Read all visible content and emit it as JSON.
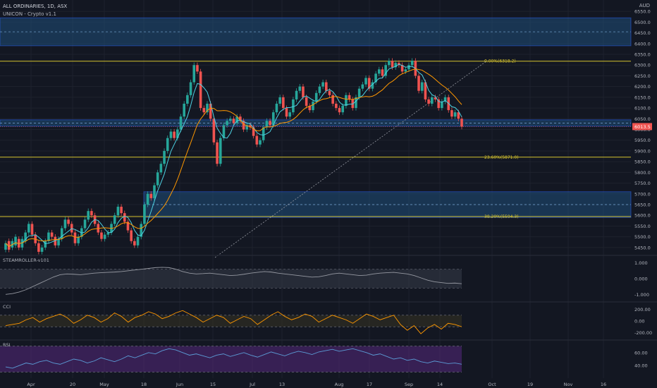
{
  "header": {
    "title": "ALL ORDINARIES, 1D, ASX",
    "indicator": "UNICON - Crypto v1.1",
    "currency": "AUD"
  },
  "colors": {
    "background": "#131722",
    "grid": "#1e222d",
    "up": "#26a69a",
    "down": "#ef5350",
    "ma_fast": "#4dd0e1",
    "ma_slow": "#ff9800",
    "fib": "#d4c22e",
    "zone": "#1f4e7a",
    "price_badge": "#ef5350",
    "rsi_band": "#5b2a86",
    "cci_band": "#3a3522"
  },
  "chart_data": [
    {
      "type": "candlestick",
      "title": "ALL ORDINARIES, 1D, ASX",
      "ylabel": "AUD",
      "x_tick_labels": [
        "Apr",
        "20",
        "May",
        "18",
        "Jun",
        "15",
        "Jul",
        "13",
        "Aug",
        "17",
        "Sep",
        "14",
        "Oct",
        "19",
        "Nov",
        "16"
      ],
      "y_tick_labels": [
        "6550.0",
        "6500.0",
        "6450.0",
        "6400.0",
        "6350.0",
        "6300.0",
        "6250.0",
        "6200.0",
        "6150.0",
        "6100.0",
        "6050.0",
        "6000.0",
        "5950.0",
        "5900.0",
        "5850.0",
        "5800.0",
        "5750.0",
        "5700.0",
        "5650.0",
        "5600.0",
        "5550.0",
        "5500.0",
        "5450.0"
      ],
      "ylim": [
        5420,
        6590
      ],
      "ohlc_close": [
        5470,
        5440,
        5480,
        5500,
        5450,
        5490,
        5520,
        5560,
        5510,
        5470,
        5430,
        5450,
        5480,
        5520,
        5500,
        5460,
        5490,
        5540,
        5580,
        5560,
        5520,
        5470,
        5500,
        5540,
        5580,
        5620,
        5600,
        5560,
        5520,
        5490,
        5510,
        5520,
        5560,
        5600,
        5640,
        5610,
        5570,
        5530,
        5480,
        5460,
        5500,
        5560,
        5650,
        5700,
        5680,
        5740,
        5800,
        5840,
        5900,
        5960,
        5990,
        5960,
        6000,
        6060,
        6120,
        6160,
        6220,
        6300,
        6270,
        6100,
        6080,
        6120,
        6050,
        5940,
        5840,
        5960,
        6020,
        6040,
        6050,
        6030,
        6060,
        6040,
        6000,
        6020,
        6010,
        5970,
        5930,
        5950,
        6010,
        6040,
        6020,
        6080,
        6120,
        6150,
        6100,
        6060,
        6080,
        6140,
        6180,
        6200,
        6150,
        6110,
        6090,
        6130,
        6170,
        6200,
        6220,
        6180,
        6160,
        6120,
        6100,
        6080,
        6110,
        6160,
        6140,
        6100,
        6150,
        6190,
        6210,
        6240,
        6190,
        6220,
        6260,
        6280,
        6250,
        6300,
        6320,
        6290,
        6310,
        6300,
        6270,
        6280,
        6300,
        6320,
        6250,
        6180,
        6220,
        6140,
        6120,
        6150,
        6140,
        6100,
        6130,
        6150,
        6090,
        6060,
        6080,
        6050,
        6013
      ],
      "ohlc_open": [
        5440,
        5480,
        5450,
        5460,
        5490,
        5450,
        5480,
        5520,
        5560,
        5510,
        5470,
        5430,
        5450,
        5480,
        5520,
        5500,
        5460,
        5490,
        5540,
        5580,
        5560,
        5520,
        5470,
        5500,
        5540,
        5580,
        5620,
        5600,
        5560,
        5520,
        5490,
        5510,
        5520,
        5560,
        5600,
        5640,
        5610,
        5570,
        5530,
        5480,
        5460,
        5500,
        5560,
        5650,
        5700,
        5680,
        5740,
        5800,
        5840,
        5900,
        5960,
        5990,
        5960,
        6000,
        6060,
        6120,
        6160,
        6220,
        6300,
        6270,
        6100,
        6080,
        6120,
        6050,
        5940,
        5840,
        5960,
        6020,
        6040,
        6050,
        6030,
        6060,
        6040,
        6000,
        6020,
        6010,
        5970,
        5930,
        5950,
        6010,
        6040,
        6020,
        6080,
        6120,
        6150,
        6100,
        6060,
        6080,
        6140,
        6180,
        6200,
        6150,
        6110,
        6090,
        6130,
        6170,
        6200,
        6220,
        6180,
        6160,
        6120,
        6100,
        6080,
        6110,
        6160,
        6140,
        6100,
        6150,
        6190,
        6210,
        6240,
        6190,
        6220,
        6260,
        6280,
        6250,
        6300,
        6320,
        6290,
        6310,
        6300,
        6270,
        6280,
        6300,
        6320,
        6250,
        6180,
        6220,
        6140,
        6120,
        6150,
        6140,
        6100,
        6130,
        6150,
        6090,
        6060,
        6080,
        6050
      ],
      "fib_levels": [
        {
          "label": "0.00%(6318.2)",
          "value": 6318.2
        },
        {
          "label": "23.60%(5871.0)",
          "value": 5871.0
        },
        {
          "label": "38.20%(5594.3)",
          "value": 5594.3
        }
      ],
      "zones": [
        {
          "from": 6390,
          "to": 6520,
          "mid": 6455
        },
        {
          "from": 6015,
          "to": 6045,
          "mid": 6030
        },
        {
          "from": 5590,
          "to": 5710,
          "mid": 5650
        }
      ],
      "last_price": "6013.5",
      "last_value": 6013.5
    },
    {
      "type": "line",
      "title": "STEAMROLLER-v101",
      "y_tick_labels": [
        "1.000",
        "0.000",
        "-1.000"
      ],
      "ylim": [
        -1.3,
        1.3
      ],
      "values": [
        -1.0,
        -0.95,
        -0.85,
        -0.7,
        -0.5,
        -0.3,
        -0.1,
        0.1,
        0.25,
        0.3,
        0.28,
        0.25,
        0.3,
        0.35,
        0.38,
        0.4,
        0.42,
        0.45,
        0.5,
        0.55,
        0.6,
        0.65,
        0.7,
        0.72,
        0.7,
        0.6,
        0.45,
        0.35,
        0.3,
        0.32,
        0.35,
        0.3,
        0.25,
        0.2,
        0.22,
        0.28,
        0.35,
        0.4,
        0.45,
        0.42,
        0.35,
        0.3,
        0.25,
        0.2,
        0.15,
        0.1,
        0.12,
        0.2,
        0.3,
        0.35,
        0.3,
        0.25,
        0.2,
        0.22,
        0.3,
        0.35,
        0.38,
        0.4,
        0.35,
        0.3,
        0.2,
        0.05,
        -0.1,
        -0.2,
        -0.25,
        -0.3,
        -0.28,
        -0.32
      ]
    },
    {
      "type": "line",
      "title": "CCI",
      "y_tick_labels": [
        "200.00",
        "0.00",
        "-200.00"
      ],
      "ylim": [
        -280,
        280
      ],
      "values": [
        -80,
        -60,
        -40,
        20,
        60,
        -20,
        40,
        80,
        120,
        60,
        -40,
        20,
        100,
        60,
        -20,
        40,
        140,
        80,
        -20,
        60,
        100,
        160,
        120,
        40,
        80,
        140,
        180,
        120,
        60,
        -20,
        40,
        100,
        60,
        -40,
        20,
        80,
        40,
        -60,
        20,
        100,
        160,
        80,
        20,
        60,
        120,
        80,
        -20,
        40,
        100,
        60,
        20,
        -40,
        40,
        120,
        80,
        20,
        60,
        100,
        -60,
        -160,
        -80,
        -220,
        -120,
        -60,
        -140,
        -40,
        -60,
        -100
      ]
    },
    {
      "type": "line",
      "title": "RSI",
      "y_tick_labels": [
        "60.00",
        "40.00"
      ],
      "ylim": [
        25,
        75
      ],
      "values": [
        38,
        36,
        40,
        44,
        42,
        46,
        48,
        44,
        42,
        46,
        50,
        48,
        44,
        47,
        52,
        49,
        46,
        50,
        55,
        52,
        56,
        60,
        58,
        63,
        66,
        64,
        60,
        56,
        58,
        55,
        52,
        56,
        58,
        54,
        57,
        60,
        56,
        53,
        57,
        61,
        58,
        55,
        59,
        62,
        60,
        57,
        61,
        63,
        65,
        62,
        64,
        66,
        63,
        60,
        56,
        58,
        54,
        50,
        52,
        48,
        50,
        46,
        44,
        47,
        45,
        43,
        44,
        42
      ]
    }
  ]
}
